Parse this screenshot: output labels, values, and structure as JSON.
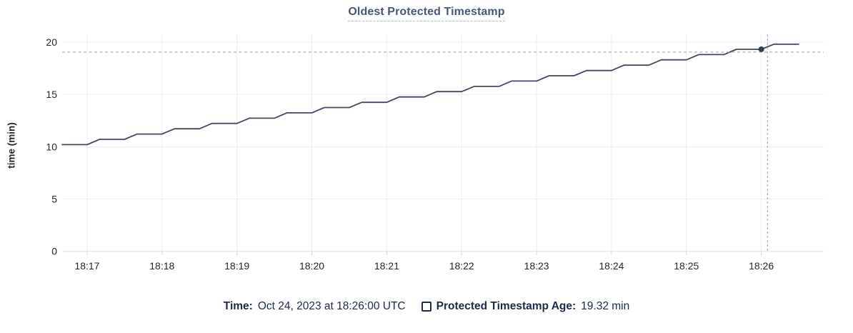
{
  "footer": {
    "time_label": "Time:",
    "time_value": "Oct 24, 2023 at 18:26:00 UTC",
    "series_label": "Protected Timestamp Age:",
    "series_value": "19.32 min",
    "checkbox_icon": "checkbox-unchecked"
  },
  "colors": {
    "title": "#475872",
    "line": "#3e4a62",
    "dot": "#323e52",
    "crosshair": "#a4b5c0",
    "grid": "#ececec",
    "axis_line": "#e0e0e0",
    "tick_stub": "#d8d8d8",
    "axis_text": "#24282c",
    "footer_text": "#1c2b49"
  },
  "chart_data": {
    "type": "line",
    "title": "Oldest Protected Timestamp",
    "xlabel": "",
    "ylabel": "time (min)",
    "ylim": [
      0,
      20
    ],
    "yticks": [
      0,
      5,
      10,
      15,
      20
    ],
    "xticks": [
      "18:17",
      "18:18",
      "18:19",
      "18:20",
      "18:21",
      "18:22",
      "18:23",
      "18:24",
      "18:25",
      "18:26"
    ],
    "x_domain": [
      "18:16:40",
      "18:26:50"
    ],
    "grid": true,
    "legend_position": "bottom",
    "series": [
      {
        "name": "Protected Timestamp Age",
        "unit": "min",
        "points": [
          [
            "18:16:40",
            10.2
          ],
          [
            "18:16:50",
            10.2
          ],
          [
            "18:17:00",
            10.2
          ],
          [
            "18:17:10",
            10.71
          ],
          [
            "18:17:20",
            10.71
          ],
          [
            "18:17:30",
            10.71
          ],
          [
            "18:17:40",
            11.21
          ],
          [
            "18:17:50",
            11.21
          ],
          [
            "18:18:00",
            11.21
          ],
          [
            "18:18:10",
            11.72
          ],
          [
            "18:18:20",
            11.72
          ],
          [
            "18:18:30",
            11.72
          ],
          [
            "18:18:40",
            12.23
          ],
          [
            "18:18:50",
            12.23
          ],
          [
            "18:19:00",
            12.23
          ],
          [
            "18:19:10",
            12.73
          ],
          [
            "18:19:20",
            12.73
          ],
          [
            "18:19:30",
            12.73
          ],
          [
            "18:19:40",
            13.24
          ],
          [
            "18:19:50",
            13.24
          ],
          [
            "18:20:00",
            13.24
          ],
          [
            "18:20:10",
            13.75
          ],
          [
            "18:20:20",
            13.75
          ],
          [
            "18:20:30",
            13.75
          ],
          [
            "18:20:40",
            14.25
          ],
          [
            "18:20:50",
            14.25
          ],
          [
            "18:21:00",
            14.25
          ],
          [
            "18:21:10",
            14.76
          ],
          [
            "18:21:20",
            14.76
          ],
          [
            "18:21:30",
            14.76
          ],
          [
            "18:21:40",
            15.27
          ],
          [
            "18:21:50",
            15.27
          ],
          [
            "18:22:00",
            15.27
          ],
          [
            "18:22:10",
            15.77
          ],
          [
            "18:22:20",
            15.77
          ],
          [
            "18:22:30",
            15.77
          ],
          [
            "18:22:40",
            16.28
          ],
          [
            "18:22:50",
            16.28
          ],
          [
            "18:23:00",
            16.28
          ],
          [
            "18:23:10",
            16.79
          ],
          [
            "18:23:20",
            16.79
          ],
          [
            "18:23:30",
            16.79
          ],
          [
            "18:23:40",
            17.29
          ],
          [
            "18:23:50",
            17.29
          ],
          [
            "18:24:00",
            17.29
          ],
          [
            "18:24:10",
            17.8
          ],
          [
            "18:24:20",
            17.8
          ],
          [
            "18:24:30",
            17.8
          ],
          [
            "18:24:40",
            18.31
          ],
          [
            "18:24:50",
            18.31
          ],
          [
            "18:25:00",
            18.31
          ],
          [
            "18:25:10",
            18.81
          ],
          [
            "18:25:20",
            18.81
          ],
          [
            "18:25:30",
            18.81
          ],
          [
            "18:25:40",
            19.32
          ],
          [
            "18:25:50",
            19.32
          ],
          [
            "18:26:00",
            19.32
          ],
          [
            "18:26:10",
            19.8
          ],
          [
            "18:26:20",
            19.8
          ],
          [
            "18:26:30",
            19.8
          ]
        ]
      }
    ],
    "hover": {
      "time": "18:26:00",
      "value": 19.32,
      "display_time": "Oct 24, 2023 at 18:26:00 UTC",
      "display_value": "19.32 min",
      "h_guideline_value": 19.05,
      "v_guideline_time": "18:26:05"
    }
  }
}
